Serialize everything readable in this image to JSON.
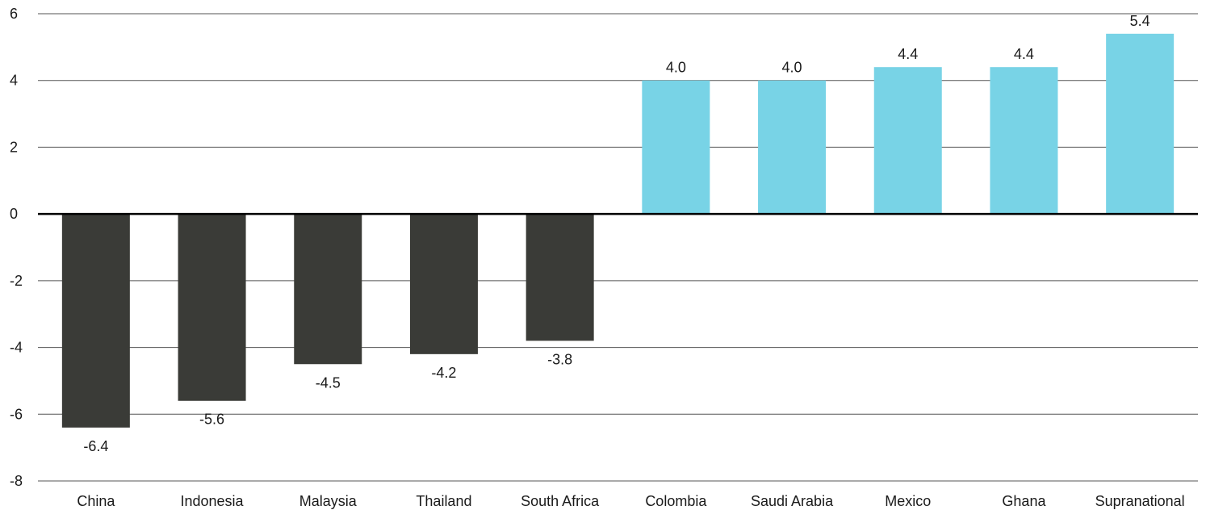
{
  "chart_data": {
    "type": "bar",
    "categories": [
      "China",
      "Indonesia",
      "Malaysia",
      "Thailand",
      "South Africa",
      "Colombia",
      "Saudi Arabia",
      "Mexico",
      "Ghana",
      "Supranational"
    ],
    "values": [
      -6.4,
      -5.6,
      -4.5,
      -4.2,
      -3.8,
      4.0,
      4.0,
      4.4,
      4.4,
      5.4
    ],
    "data_labels": [
      "-6.4",
      "-5.6",
      "-4.5",
      "-4.2",
      "-3.8",
      "4.0",
      "4.0",
      "4.4",
      "4.4",
      "5.4"
    ],
    "ylim": [
      -8,
      6
    ],
    "yticks": [
      6,
      4,
      2,
      0,
      -2,
      -4,
      -6,
      -8
    ],
    "ytick_labels": [
      "6",
      "4",
      "2",
      "0",
      "-2",
      "-4",
      "-6",
      "-8"
    ],
    "grid": true,
    "title": "",
    "xlabel": "",
    "ylabel": "",
    "colors": {
      "negative": "#3a3b37",
      "positive": "#78d3e6",
      "grid": "#555555",
      "zero_line": "#000000"
    }
  }
}
